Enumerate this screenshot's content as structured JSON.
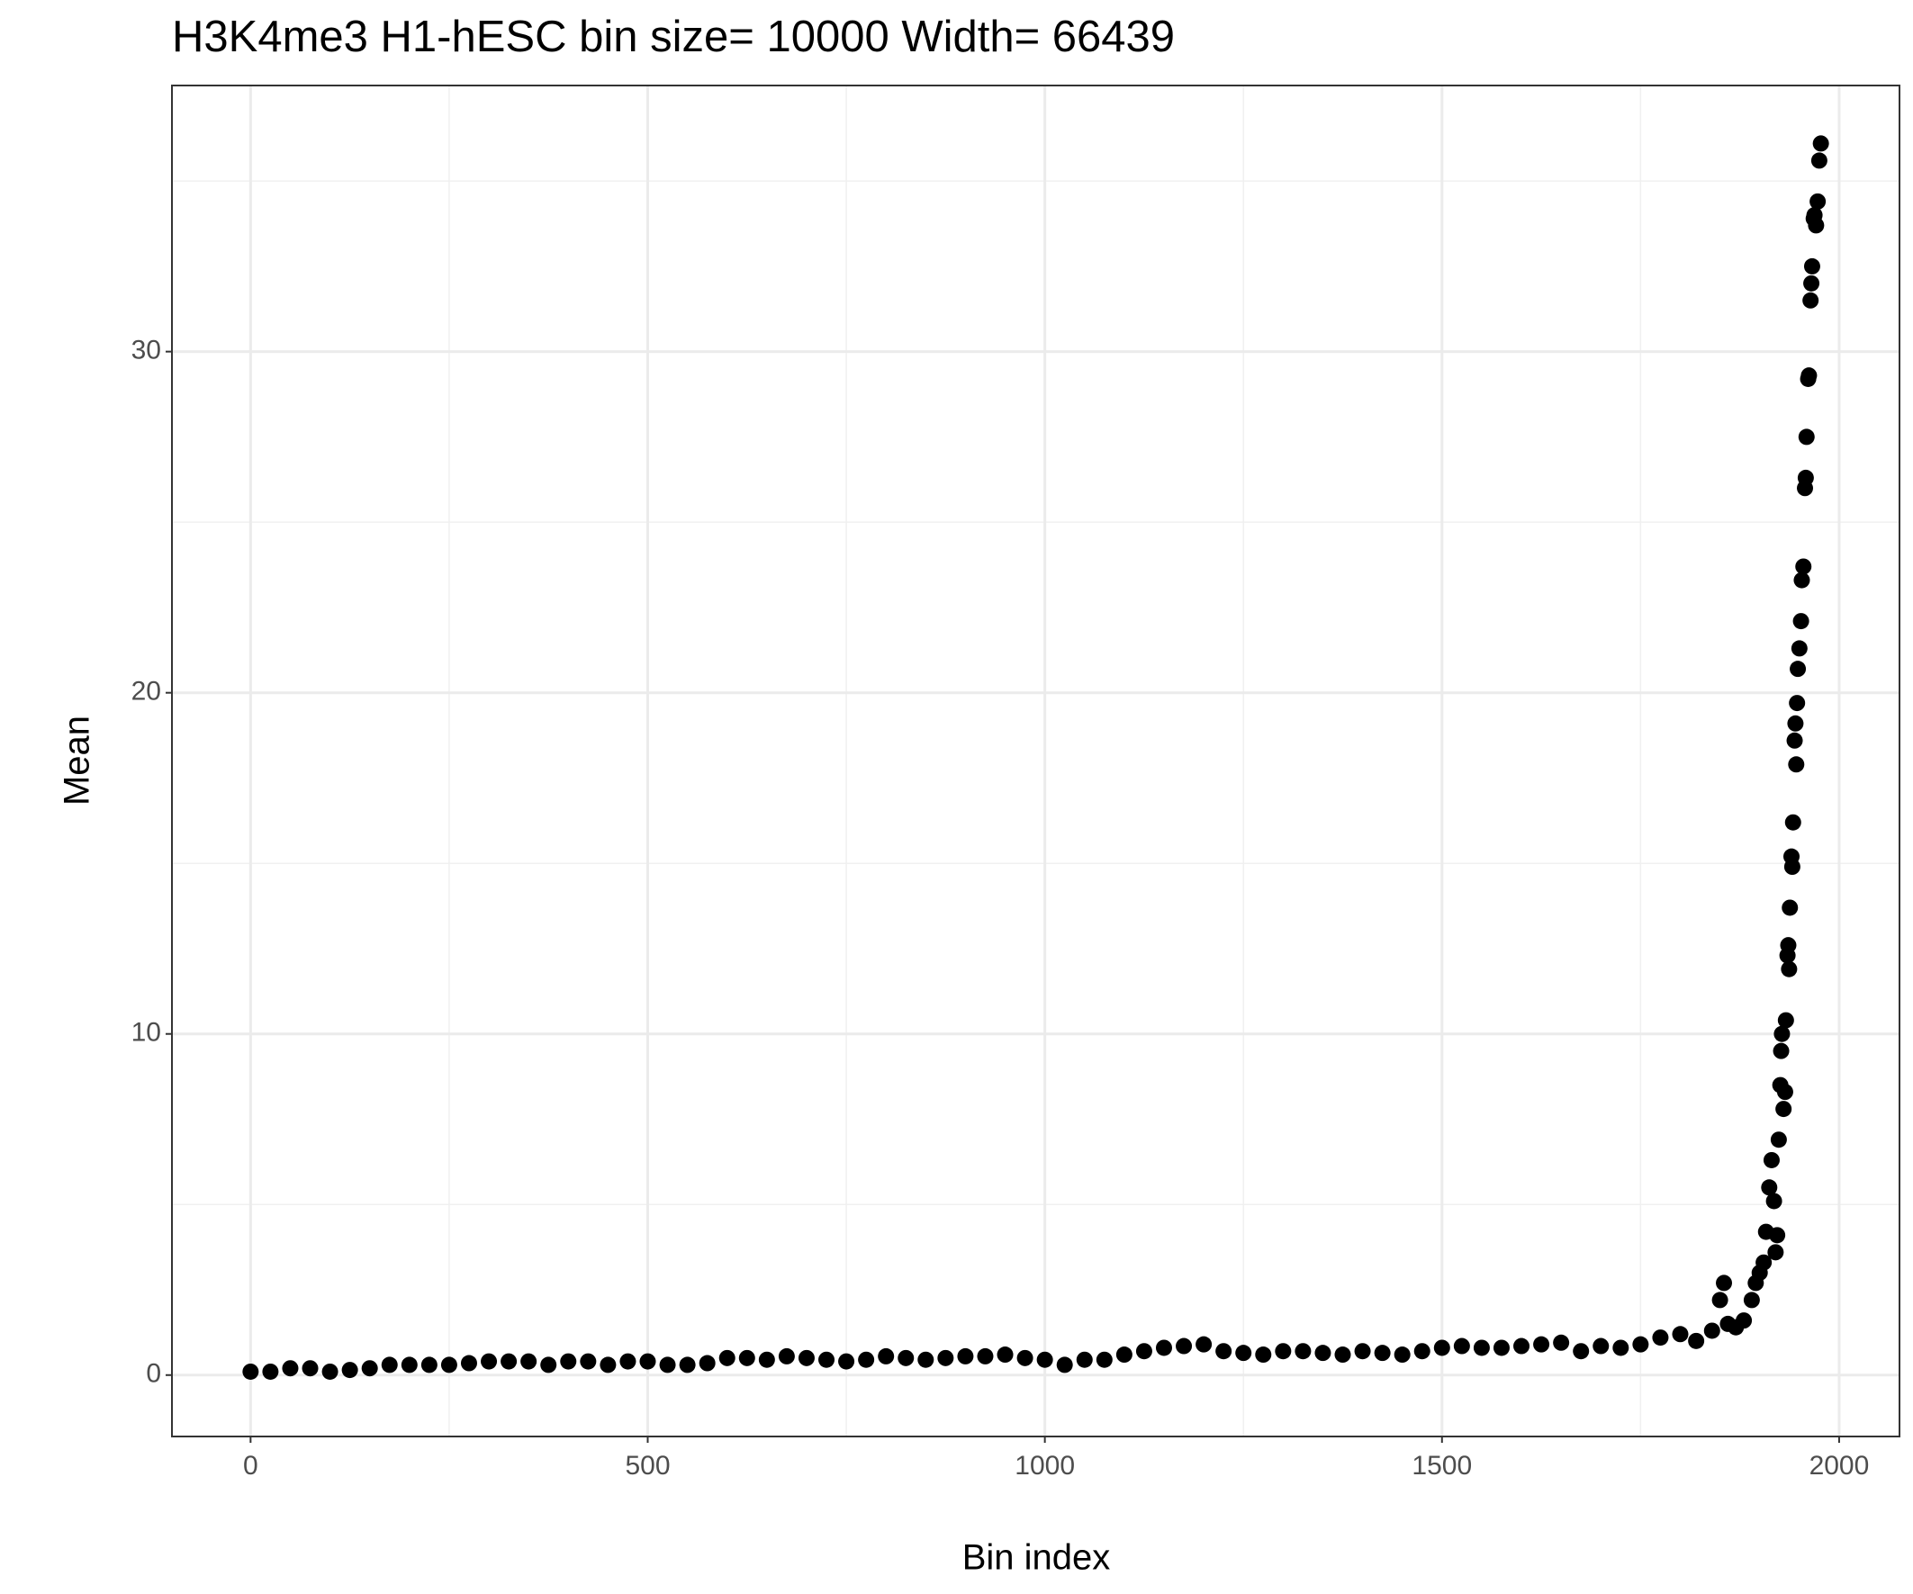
{
  "chart_data": {
    "type": "scatter",
    "title": "H3K4me3 H1-hESC  bin size=  10000  Width=  66439",
    "x_label": "Bin index",
    "y_label": "Mean",
    "x": [
      0,
      25,
      50,
      75,
      100,
      125,
      150,
      175,
      200,
      225,
      250,
      275,
      300,
      325,
      350,
      375,
      400,
      425,
      450,
      475,
      500,
      525,
      550,
      575,
      600,
      625,
      650,
      675,
      700,
      725,
      750,
      775,
      800,
      825,
      850,
      875,
      900,
      925,
      950,
      975,
      1000,
      1025,
      1050,
      1075,
      1100,
      1125,
      1150,
      1175,
      1200,
      1225,
      1250,
      1275,
      1300,
      1325,
      1350,
      1375,
      1400,
      1425,
      1450,
      1475,
      1500,
      1525,
      1550,
      1575,
      1600,
      1625,
      1650,
      1675,
      1700,
      1725,
      1750,
      1775,
      1800,
      1820,
      1840,
      1850,
      1855,
      1860,
      1870,
      1880,
      1890,
      1895,
      1900,
      1905,
      1908,
      1912,
      1915,
      1918,
      1920,
      1922,
      1924,
      1926,
      1927,
      1928,
      1930,
      1932,
      1933,
      1935,
      1936,
      1937,
      1938,
      1940,
      1941,
      1942,
      1944,
      1945,
      1946,
      1947,
      1948,
      1950,
      1952,
      1953,
      1955,
      1957,
      1958,
      1959,
      1961,
      1962,
      1964,
      1965,
      1966,
      1968,
      1969,
      1971,
      1973,
      1975,
      1977
    ],
    "values": [
      0.1,
      0.1,
      0.2,
      0.2,
      0.1,
      0.15,
      0.2,
      0.3,
      0.3,
      0.3,
      0.3,
      0.35,
      0.4,
      0.4,
      0.4,
      0.3,
      0.4,
      0.4,
      0.3,
      0.4,
      0.4,
      0.3,
      0.3,
      0.35,
      0.5,
      0.5,
      0.45,
      0.55,
      0.5,
      0.45,
      0.4,
      0.45,
      0.55,
      0.5,
      0.45,
      0.5,
      0.55,
      0.55,
      0.6,
      0.5,
      0.45,
      0.3,
      0.45,
      0.45,
      0.6,
      0.7,
      0.8,
      0.85,
      0.9,
      0.7,
      0.65,
      0.6,
      0.7,
      0.7,
      0.65,
      0.6,
      0.7,
      0.65,
      0.6,
      0.7,
      0.8,
      0.85,
      0.8,
      0.8,
      0.85,
      0.9,
      0.95,
      0.7,
      0.85,
      0.8,
      0.9,
      1.1,
      1.2,
      1.0,
      1.3,
      2.2,
      2.7,
      1.5,
      1.4,
      1.6,
      2.2,
      2.7,
      3.0,
      3.3,
      4.2,
      5.5,
      6.3,
      5.1,
      3.6,
      4.1,
      6.9,
      8.5,
      9.5,
      10.0,
      7.8,
      8.3,
      10.4,
      12.3,
      12.6,
      11.9,
      13.7,
      15.2,
      14.9,
      16.2,
      18.6,
      19.1,
      17.9,
      19.7,
      20.7,
      21.3,
      22.1,
      23.3,
      23.7,
      26.0,
      26.3,
      27.5,
      29.2,
      29.3,
      31.5,
      32.0,
      32.5,
      33.9,
      34.0,
      33.7,
      34.4,
      35.6,
      36.1
    ],
    "color": "#000000",
    "xlim": [
      -99,
      2076
    ],
    "xticks": [
      0,
      500,
      1000,
      1500,
      2000
    ],
    "x_minor_grid": [
      250,
      750,
      1250,
      1750
    ],
    "ylim": [
      -1.8,
      37.8
    ],
    "yticks": [
      0,
      10,
      20,
      30
    ],
    "y_minor_grid": [
      5,
      15,
      25,
      35
    ],
    "grid": true
  }
}
